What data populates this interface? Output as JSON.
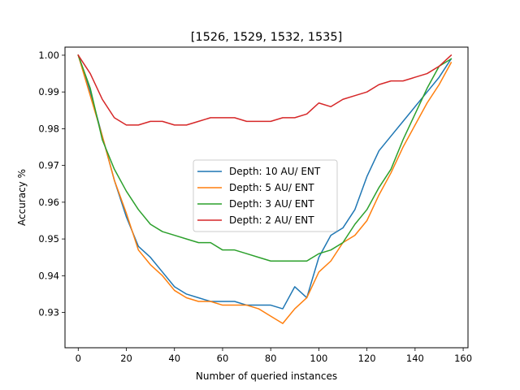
{
  "chart_data": {
    "type": "line",
    "title": "[1526, 1529, 1532, 1535]",
    "xlabel": "Number of queried instances",
    "ylabel": "Accuracy %",
    "xlim": [
      -5.5,
      162
    ],
    "ylim": [
      0.9204,
      1.0022
    ],
    "xticks": [
      0,
      20,
      40,
      60,
      80,
      100,
      120,
      140,
      160
    ],
    "xtick_labels": [
      "0",
      "20",
      "40",
      "60",
      "80",
      "100",
      "120",
      "140",
      "160"
    ],
    "yticks": [
      0.93,
      0.94,
      0.95,
      0.96,
      0.97,
      0.98,
      0.99,
      1.0
    ],
    "ytick_labels": [
      "0.93",
      "0.94",
      "0.95",
      "0.96",
      "0.97",
      "0.98",
      "0.99",
      "1.00"
    ],
    "grid": false,
    "legend_position": "center",
    "series": [
      {
        "name": "Depth: 10 AU/ ENT",
        "color": "#1f77b4",
        "x": [
          0,
          5,
          10,
          15,
          20,
          25,
          30,
          35,
          40,
          45,
          50,
          55,
          60,
          65,
          70,
          75,
          80,
          85,
          90,
          95,
          100,
          105,
          110,
          115,
          120,
          125,
          130,
          135,
          140,
          145,
          150,
          155
        ],
        "y": [
          1.0,
          0.99,
          0.978,
          0.966,
          0.956,
          0.948,
          0.945,
          0.941,
          0.937,
          0.935,
          0.934,
          0.933,
          0.933,
          0.933,
          0.932,
          0.932,
          0.932,
          0.931,
          0.937,
          0.934,
          0.945,
          0.951,
          0.953,
          0.958,
          0.967,
          0.974,
          0.978,
          0.982,
          0.986,
          0.99,
          0.994,
          0.999
        ]
      },
      {
        "name": "Depth: 5 AU/ ENT",
        "color": "#ff7f0e",
        "x": [
          0,
          5,
          10,
          15,
          20,
          25,
          30,
          35,
          40,
          45,
          50,
          55,
          60,
          65,
          70,
          75,
          80,
          85,
          90,
          95,
          100,
          105,
          110,
          115,
          120,
          125,
          130,
          135,
          140,
          145,
          150,
          155
        ],
        "y": [
          1.0,
          0.989,
          0.978,
          0.966,
          0.957,
          0.947,
          0.943,
          0.94,
          0.936,
          0.934,
          0.933,
          0.933,
          0.932,
          0.932,
          0.932,
          0.931,
          0.929,
          0.927,
          0.931,
          0.934,
          0.941,
          0.944,
          0.949,
          0.951,
          0.955,
          0.962,
          0.968,
          0.975,
          0.981,
          0.987,
          0.992,
          0.998
        ]
      },
      {
        "name": "Depth: 3 AU/ ENT",
        "color": "#2ca02c",
        "x": [
          0,
          5,
          10,
          15,
          20,
          25,
          30,
          35,
          40,
          45,
          50,
          55,
          60,
          65,
          70,
          75,
          80,
          85,
          90,
          95,
          100,
          105,
          110,
          115,
          120,
          125,
          130,
          135,
          140,
          145,
          150,
          155
        ],
        "y": [
          1.0,
          0.991,
          0.977,
          0.969,
          0.963,
          0.958,
          0.954,
          0.952,
          0.951,
          0.95,
          0.949,
          0.949,
          0.947,
          0.947,
          0.946,
          0.945,
          0.944,
          0.944,
          0.944,
          0.944,
          0.946,
          0.947,
          0.949,
          0.954,
          0.958,
          0.964,
          0.969,
          0.977,
          0.984,
          0.991,
          0.997,
          0.999
        ]
      },
      {
        "name": "Depth: 2 AU/ ENT",
        "color": "#d62728",
        "x": [
          0,
          5,
          10,
          15,
          20,
          25,
          30,
          35,
          40,
          45,
          50,
          55,
          60,
          65,
          70,
          75,
          80,
          85,
          90,
          95,
          100,
          105,
          110,
          115,
          120,
          125,
          130,
          135,
          140,
          145,
          150,
          155
        ],
        "y": [
          1.0,
          0.995,
          0.988,
          0.983,
          0.981,
          0.981,
          0.982,
          0.982,
          0.981,
          0.981,
          0.982,
          0.983,
          0.983,
          0.983,
          0.982,
          0.982,
          0.982,
          0.983,
          0.983,
          0.984,
          0.987,
          0.986,
          0.988,
          0.989,
          0.99,
          0.992,
          0.993,
          0.993,
          0.994,
          0.995,
          0.997,
          1.0
        ]
      }
    ]
  }
}
